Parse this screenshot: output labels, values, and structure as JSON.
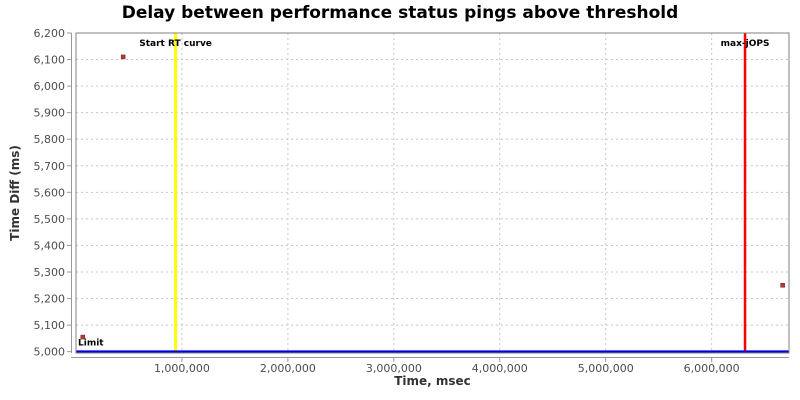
{
  "chart_data": {
    "type": "scatter",
    "title": "Delay between performance status pings above threshold",
    "xlabel": "Time, msec",
    "ylabel": "Time Diff (ms)",
    "xlim": [
      0,
      6730000
    ],
    "ylim": [
      4995,
      6200
    ],
    "grid": "dashed",
    "legend": "none",
    "x_ticks": [
      {
        "value": 1000000,
        "label": "1,000,000"
      },
      {
        "value": 2000000,
        "label": "2,000,000"
      },
      {
        "value": 3000000,
        "label": "3,000,000"
      },
      {
        "value": 4000000,
        "label": "4,000,000"
      },
      {
        "value": 5000000,
        "label": "5,000,000"
      },
      {
        "value": 6000000,
        "label": "6,000,000"
      }
    ],
    "y_ticks": [
      {
        "value": 5000,
        "label": "5,000"
      },
      {
        "value": 5100,
        "label": "5,100"
      },
      {
        "value": 5200,
        "label": "5,200"
      },
      {
        "value": 5300,
        "label": "5,300"
      },
      {
        "value": 5400,
        "label": "5,400"
      },
      {
        "value": 5500,
        "label": "5,500"
      },
      {
        "value": 5600,
        "label": "5,600"
      },
      {
        "value": 5700,
        "label": "5,700"
      },
      {
        "value": 5800,
        "label": "5,800"
      },
      {
        "value": 5900,
        "label": "5,900"
      },
      {
        "value": 6000,
        "label": "6,000"
      },
      {
        "value": 6100,
        "label": "6,100"
      },
      {
        "value": 6200,
        "label": "6,200"
      }
    ],
    "series": [
      {
        "name": "ping-delay-points",
        "marker": "square",
        "color": "#b23a2e",
        "points": [
          {
            "x": 445000,
            "y": 6110
          },
          {
            "x": 64000,
            "y": 5055
          },
          {
            "x": 6670000,
            "y": 5250
          }
        ]
      }
    ],
    "markers": [
      {
        "id": "start-rt-curve",
        "type": "vline",
        "value": 940000,
        "color": "#ffff00",
        "width": 3,
        "label": "Start RT curve"
      },
      {
        "id": "max-jops",
        "type": "vline",
        "value": 6315000,
        "color": "#ff0000",
        "width": 2.5,
        "label": "max-jOPS"
      },
      {
        "id": "limit",
        "type": "hline",
        "value": 5000,
        "color": "#0000dd",
        "width": 2.5,
        "label": "Limit"
      }
    ],
    "colors": {
      "grid": "#c8c8c8",
      "plot_border": "#808080",
      "axis_line": "#999999",
      "tick_label": "#4d4d4d",
      "axis_title": "#333333",
      "title": "#000000",
      "marker_label": "#000000",
      "point_fill": "#b23a2e",
      "point_stroke": "#6e2620"
    }
  }
}
